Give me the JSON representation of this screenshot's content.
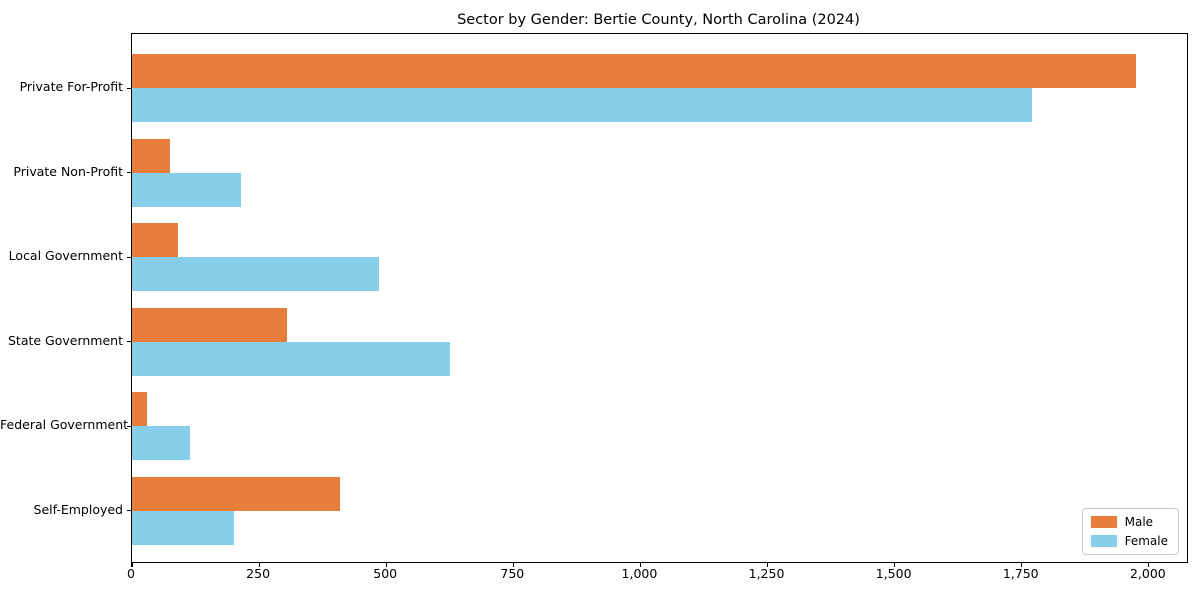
{
  "chart_data": {
    "type": "bar",
    "orientation": "horizontal",
    "title": "Sector by Gender: Bertie County, North Carolina (2024)",
    "categories": [
      "Private For-Profit",
      "Private Non-Profit",
      "Local Government",
      "State Government",
      "Federal Government",
      "Self-Employed"
    ],
    "series": [
      {
        "name": "Male",
        "color": "#e87e3b",
        "values": [
          1975,
          75,
          90,
          305,
          30,
          410
        ]
      },
      {
        "name": "Female",
        "color": "#87ceeb",
        "values": [
          1770,
          215,
          485,
          625,
          115,
          200
        ]
      }
    ],
    "xlim": [
      0,
      2075
    ],
    "xticks": [
      0,
      250,
      500,
      750,
      1000,
      1250,
      1500,
      1750,
      2000
    ],
    "xtick_labels": [
      "0",
      "250",
      "500",
      "750",
      "1,000",
      "1,250",
      "1,500",
      "1,750",
      "2,000"
    ],
    "xlabel": "",
    "ylabel": "",
    "grid": false,
    "legend_position": "lower right",
    "background_color": "#ffffff",
    "frame_color": "#000000"
  }
}
